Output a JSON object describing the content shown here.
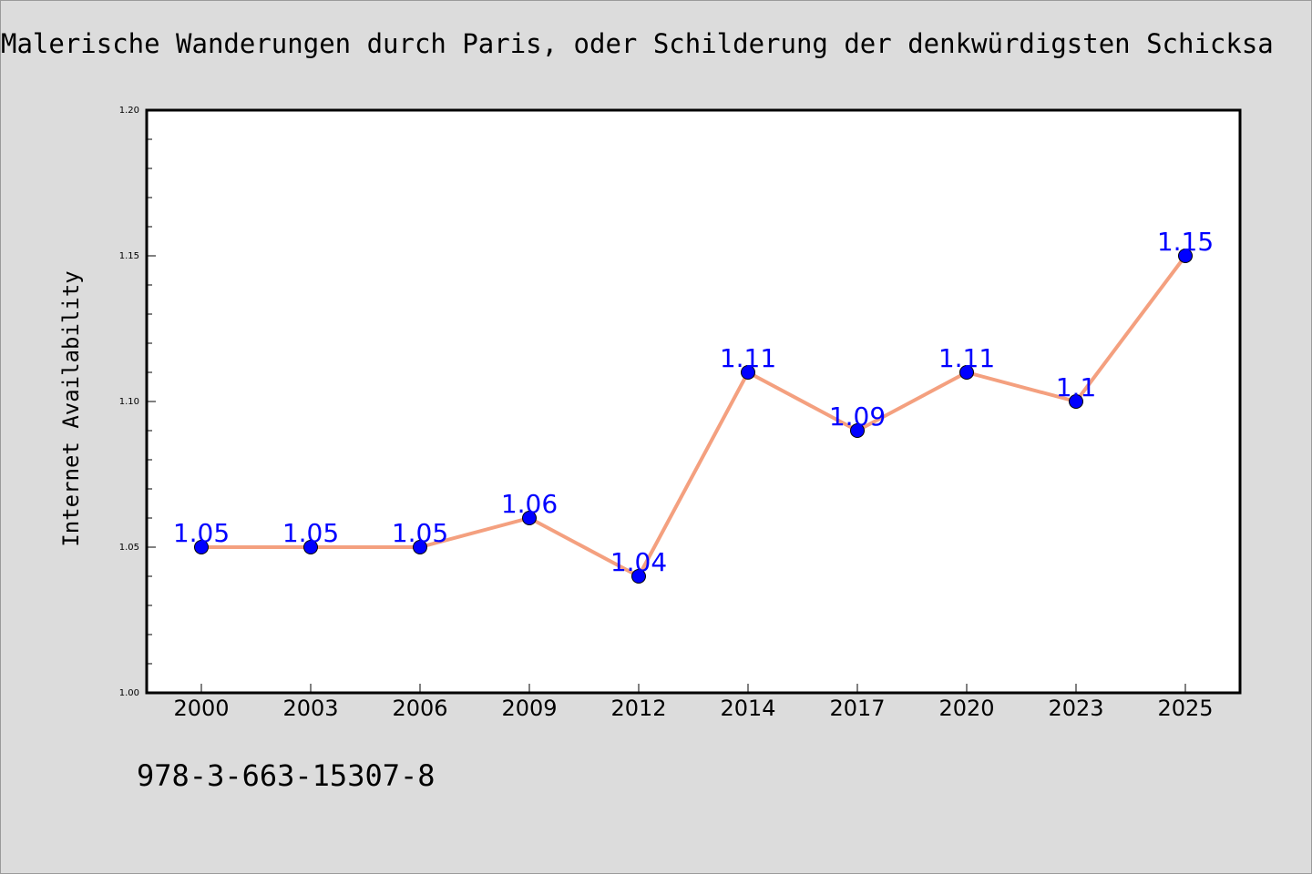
{
  "title": "Malerische Wanderungen durch Paris, oder Schilderung der denkwürdigsten Schicksa",
  "isbn": "978-3-663-15307-8",
  "colors": {
    "background": "#dcdcdc",
    "plot_background": "#ffffff",
    "line": "#f4a07f",
    "marker_fill": "#0000ff",
    "data_label": "#0000ff"
  },
  "chart_data": {
    "type": "line",
    "categories": [
      "2000",
      "2003",
      "2006",
      "2009",
      "2012",
      "2014",
      "2017",
      "2020",
      "2023",
      "2025"
    ],
    "values": [
      1.05,
      1.05,
      1.05,
      1.06,
      1.04,
      1.11,
      1.09,
      1.11,
      1.1,
      1.15
    ],
    "data_labels": [
      "1.05",
      "1.05",
      "1.05",
      "1.06",
      "1.04",
      "1.11",
      "1.09",
      "1.11",
      "1.1",
      "1.15"
    ],
    "ylabel": "Internet Availability",
    "xlabel": "",
    "ylim": [
      1.0,
      1.2
    ],
    "yticks": [
      "1.00",
      "1.05",
      "1.10",
      "1.15",
      "1.20"
    ],
    "ytick_values": [
      1.0,
      1.05,
      1.1,
      1.15,
      1.2
    ],
    "grid": false,
    "legend": "none"
  }
}
